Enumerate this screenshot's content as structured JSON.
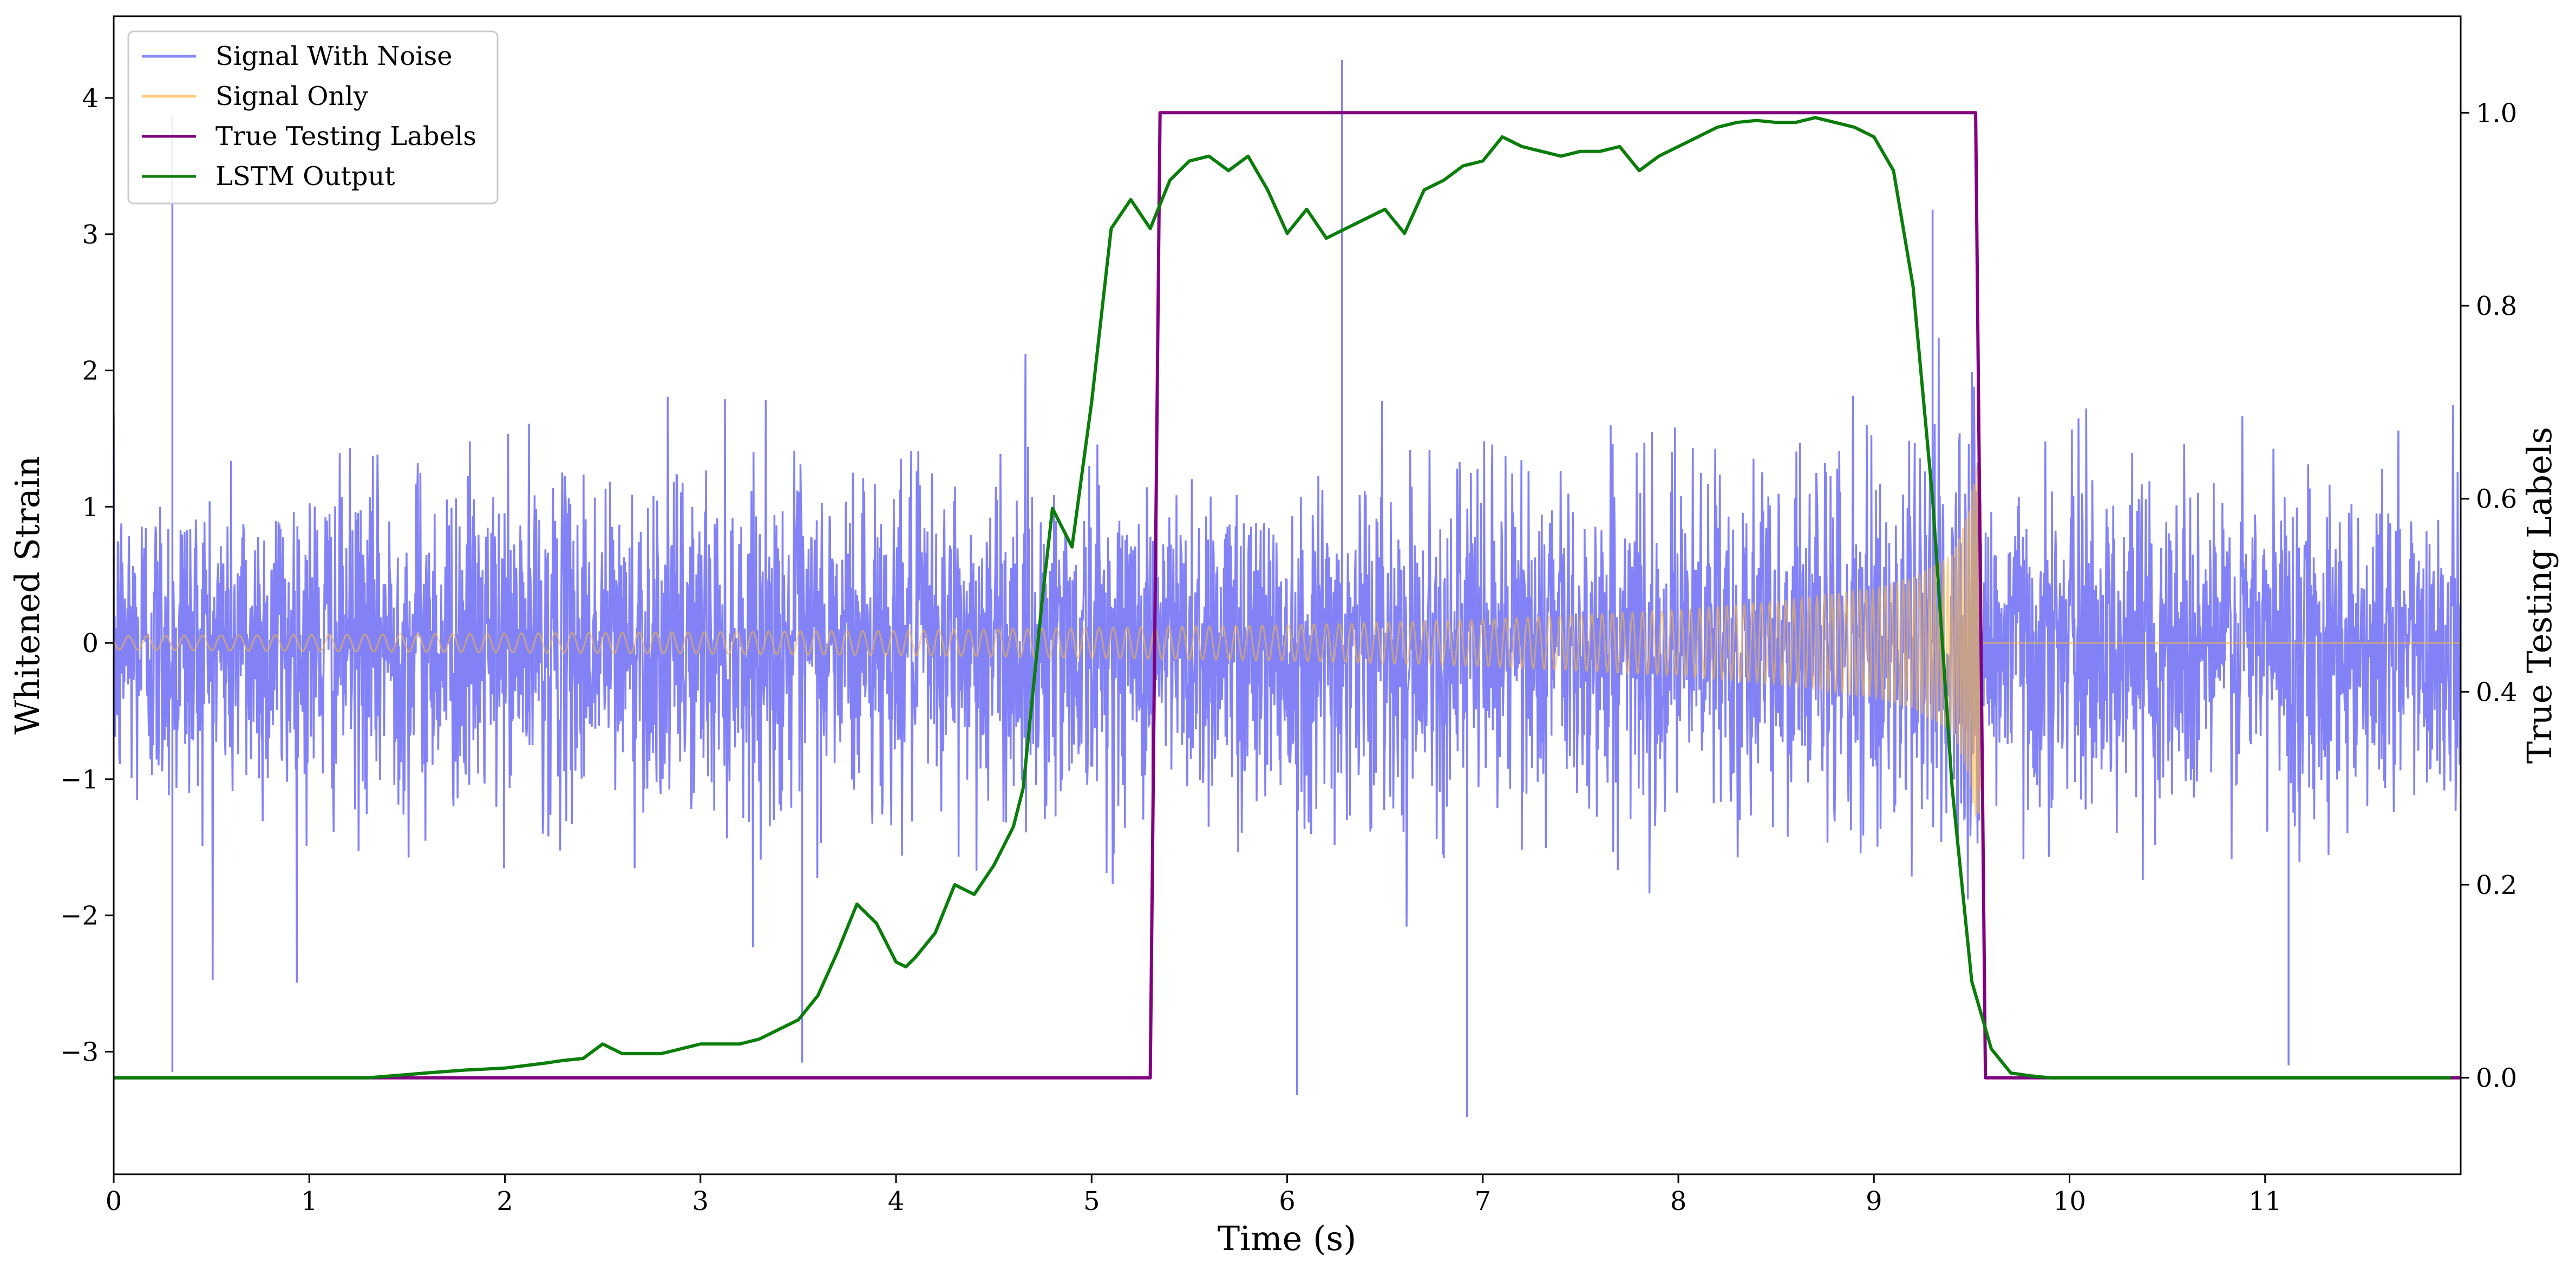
{
  "chart_data": {
    "type": "line",
    "title": "",
    "xlabel": "Time (s)",
    "ylabel_left": "Whitened Strain",
    "ylabel_right": "True Testing Labels",
    "xlim": [
      0,
      12
    ],
    "ylim_left": [
      -3.9,
      4.6
    ],
    "ylim_right": [
      -0.1,
      1.1
    ],
    "x_ticks": [
      0,
      1,
      2,
      3,
      4,
      5,
      6,
      7,
      8,
      9,
      10,
      11
    ],
    "x_tick_labels": [
      "0",
      "1",
      "2",
      "3",
      "4",
      "5",
      "6",
      "7",
      "8",
      "9",
      "10",
      "11"
    ],
    "y_left_ticks": [
      -3,
      -2,
      -1,
      0,
      1,
      2,
      3,
      4
    ],
    "y_left_tick_labels": [
      "−3",
      "−2",
      "−1",
      "0",
      "1",
      "2",
      "3",
      "4"
    ],
    "y_right_ticks": [
      0.0,
      0.2,
      0.4,
      0.6,
      0.8,
      1.0
    ],
    "y_right_tick_labels": [
      "0.0",
      "0.2",
      "0.4",
      "0.6",
      "0.8",
      "1.0"
    ],
    "grid": false,
    "legend_position": "top-left",
    "series": [
      {
        "name": "Signal With Noise",
        "axis": "left",
        "color": "#7b7bf6",
        "style": "dense noisy line",
        "spread_std": 0.6,
        "notable_peaks": [
          {
            "x": 0.3,
            "y": 3.87
          },
          {
            "x": 0.3,
            "y": -3.15
          },
          {
            "x": 6.28,
            "y": 4.28
          },
          {
            "x": 6.05,
            "y": -3.32
          },
          {
            "x": 6.92,
            "y": -3.48
          },
          {
            "x": 3.52,
            "y": -3.08
          },
          {
            "x": 9.3,
            "y": 3.18
          },
          {
            "x": 11.12,
            "y": -3.1
          }
        ]
      },
      {
        "name": "Signal Only",
        "axis": "left",
        "color": "#f5b642",
        "style": "chirp",
        "envelope": [
          [
            0.0,
            0.05
          ],
          [
            1.0,
            0.06
          ],
          [
            2.0,
            0.07
          ],
          [
            3.0,
            0.08
          ],
          [
            4.0,
            0.09
          ],
          [
            5.0,
            0.11
          ],
          [
            6.0,
            0.13
          ],
          [
            7.0,
            0.17
          ],
          [
            8.0,
            0.24
          ],
          [
            8.5,
            0.3
          ],
          [
            9.0,
            0.4
          ],
          [
            9.2,
            0.48
          ],
          [
            9.4,
            0.65
          ],
          [
            9.48,
            0.95
          ],
          [
            9.52,
            1.3
          ],
          [
            9.55,
            0.0
          ],
          [
            12.0,
            0.0
          ]
        ]
      },
      {
        "name": "True Testing Labels",
        "axis": "right",
        "color": "#800080",
        "x": [
          0,
          5.3,
          5.35,
          9.52,
          9.57,
          12
        ],
        "y": [
          0,
          0,
          1,
          1,
          0,
          0
        ]
      },
      {
        "name": "LSTM Output",
        "axis": "right",
        "color": "#0a7d0a",
        "x": [
          0,
          1.3,
          1.6,
          1.8,
          2.0,
          2.2,
          2.3,
          2.4,
          2.5,
          2.6,
          2.8,
          3.0,
          3.2,
          3.3,
          3.4,
          3.5,
          3.6,
          3.7,
          3.8,
          3.9,
          4.0,
          4.05,
          4.1,
          4.2,
          4.3,
          4.4,
          4.5,
          4.6,
          4.65,
          4.7,
          4.75,
          4.8,
          4.9,
          5.0,
          5.1,
          5.2,
          5.3,
          5.4,
          5.5,
          5.6,
          5.7,
          5.8,
          5.9,
          6.0,
          6.1,
          6.2,
          6.3,
          6.4,
          6.5,
          6.6,
          6.7,
          6.8,
          6.9,
          7.0,
          7.1,
          7.2,
          7.3,
          7.4,
          7.5,
          7.6,
          7.7,
          7.8,
          7.9,
          8.0,
          8.1,
          8.2,
          8.3,
          8.4,
          8.5,
          8.6,
          8.7,
          8.8,
          8.9,
          9.0,
          9.1,
          9.2,
          9.3,
          9.4,
          9.5,
          9.6,
          9.7,
          9.8,
          9.9,
          10.0,
          11.0,
          11.95
        ],
        "y": [
          0.0,
          0.0,
          0.005,
          0.008,
          0.01,
          0.015,
          0.018,
          0.02,
          0.035,
          0.025,
          0.025,
          0.035,
          0.035,
          0.04,
          0.05,
          0.06,
          0.085,
          0.13,
          0.18,
          0.16,
          0.12,
          0.115,
          0.125,
          0.15,
          0.2,
          0.19,
          0.22,
          0.26,
          0.3,
          0.4,
          0.5,
          0.59,
          0.55,
          0.7,
          0.88,
          0.91,
          0.88,
          0.93,
          0.95,
          0.955,
          0.94,
          0.955,
          0.92,
          0.875,
          0.9,
          0.87,
          0.88,
          0.89,
          0.9,
          0.875,
          0.92,
          0.93,
          0.945,
          0.95,
          0.975,
          0.965,
          0.96,
          0.955,
          0.96,
          0.96,
          0.965,
          0.94,
          0.955,
          0.965,
          0.975,
          0.985,
          0.99,
          0.992,
          0.99,
          0.99,
          0.995,
          0.99,
          0.985,
          0.975,
          0.94,
          0.82,
          0.6,
          0.3,
          0.1,
          0.03,
          0.005,
          0.002,
          0.0,
          0.0,
          0.0,
          0.0
        ]
      }
    ]
  }
}
